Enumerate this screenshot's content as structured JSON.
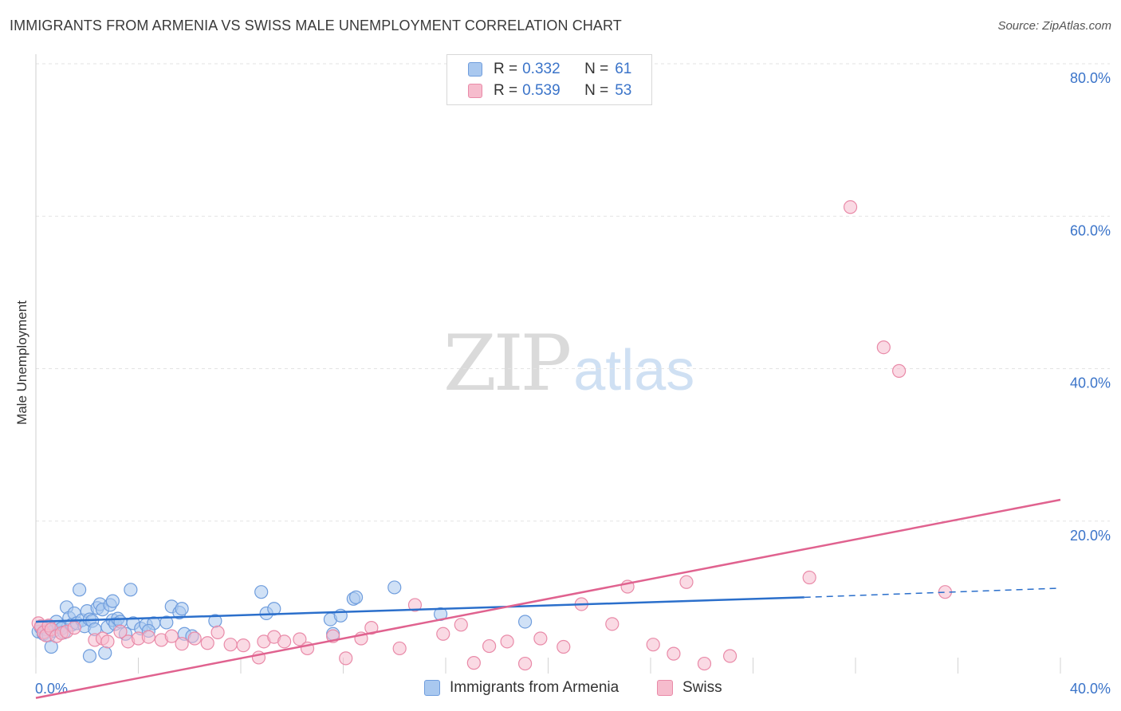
{
  "title": "IMMIGRANTS FROM ARMENIA VS SWISS MALE UNEMPLOYMENT CORRELATION CHART",
  "source": "Source: ZipAtlas.com",
  "watermark": {
    "zip": "ZIP",
    "atlas": "atlas"
  },
  "legend_top": [
    {
      "r_label": "R =",
      "r_value": "0.332",
      "n_label": "N =",
      "n_value": "61"
    },
    {
      "r_label": "R =",
      "r_value": "0.539",
      "n_label": "N =",
      "n_value": "53"
    }
  ],
  "legend_bottom": [
    "Immigrants from Armenia",
    "Swiss"
  ],
  "colors": {
    "blue_fill": "#a9c8ef",
    "blue_stroke": "#6f9ddd",
    "blue_line": "#2b6fcb",
    "pink_fill": "#f6bccd",
    "pink_stroke": "#e98aa8",
    "pink_line": "#e0628f",
    "grid": "#e3e3e3",
    "axis_text": "#3b74c9"
  },
  "chart_data": {
    "type": "scatter",
    "title": "IMMIGRANTS FROM ARMENIA VS SWISS MALE UNEMPLOYMENT CORRELATION CHART",
    "xlabel": "",
    "ylabel": "Male Unemployment",
    "xlim": [
      0,
      40
    ],
    "ylim": [
      0,
      80
    ],
    "x_tick_labels": [
      "0.0%",
      "40.0%"
    ],
    "y_ticks": [
      20,
      40,
      60,
      80
    ],
    "y_tick_labels": [
      "20.0%",
      "40.0%",
      "60.0%",
      "80.0%"
    ],
    "grid": true,
    "legend_position": "top-center",
    "series": [
      {
        "name": "Immigrants from Armenia",
        "r": 0.332,
        "n": 61,
        "trend": {
          "x0": 0,
          "y0": 6.8,
          "x1": 30.0,
          "y1": 10.0,
          "dashed_to_x": 40,
          "dashed_to_y": 11.2
        },
        "points": [
          [
            0.1,
            5.5
          ],
          [
            0.2,
            6.0
          ],
          [
            0.3,
            5.2
          ],
          [
            0.4,
            5.8
          ],
          [
            0.5,
            6.2
          ],
          [
            0.5,
            5.0
          ],
          [
            0.6,
            3.5
          ],
          [
            0.7,
            5.6
          ],
          [
            0.8,
            6.8
          ],
          [
            0.9,
            6.1
          ],
          [
            1.0,
            5.9
          ],
          [
            1.1,
            5.4
          ],
          [
            1.2,
            8.7
          ],
          [
            1.3,
            7.3
          ],
          [
            1.4,
            6.4
          ],
          [
            1.5,
            7.9
          ],
          [
            1.6,
            6.6
          ],
          [
            1.7,
            11.0
          ],
          [
            1.8,
            7.0
          ],
          [
            1.9,
            6.2
          ],
          [
            2.0,
            8.2
          ],
          [
            2.1,
            7.1
          ],
          [
            2.2,
            6.9
          ],
          [
            2.3,
            5.8
          ],
          [
            2.4,
            8.6
          ],
          [
            2.5,
            9.1
          ],
          [
            2.6,
            8.4
          ],
          [
            2.8,
            6.1
          ],
          [
            2.9,
            9.0
          ],
          [
            3.0,
            7.0
          ],
          [
            3.1,
            6.5
          ],
          [
            3.2,
            7.2
          ],
          [
            3.3,
            6.8
          ],
          [
            3.5,
            5.2
          ],
          [
            3.7,
            11.0
          ],
          [
            3.8,
            6.6
          ],
          [
            4.1,
            5.9
          ],
          [
            4.3,
            6.4
          ],
          [
            4.6,
            6.6
          ],
          [
            4.4,
            5.6
          ],
          [
            5.1,
            6.7
          ],
          [
            5.3,
            8.8
          ],
          [
            5.6,
            8.0
          ],
          [
            5.7,
            8.5
          ],
          [
            5.8,
            5.2
          ],
          [
            6.1,
            4.9
          ],
          [
            7.0,
            6.9
          ],
          [
            8.8,
            10.7
          ],
          [
            9.0,
            7.9
          ],
          [
            9.3,
            8.5
          ],
          [
            11.5,
            7.1
          ],
          [
            11.6,
            5.2
          ],
          [
            11.9,
            7.6
          ],
          [
            12.4,
            9.8
          ],
          [
            12.5,
            10.0
          ],
          [
            14.0,
            11.3
          ],
          [
            15.8,
            7.8
          ],
          [
            19.1,
            6.8
          ],
          [
            2.1,
            2.3
          ],
          [
            2.7,
            2.7
          ],
          [
            3.0,
            9.5
          ]
        ]
      },
      {
        "name": "Swiss",
        "r": 0.539,
        "n": 53,
        "trend": {
          "x0": 0,
          "y0": -3.2,
          "x1": 40,
          "y1": 22.8
        },
        "points": [
          [
            0.1,
            6.6
          ],
          [
            0.2,
            6.2
          ],
          [
            0.3,
            5.4
          ],
          [
            0.4,
            5.0
          ],
          [
            0.5,
            6.3
          ],
          [
            0.6,
            5.8
          ],
          [
            0.8,
            4.9
          ],
          [
            1.0,
            5.3
          ],
          [
            1.2,
            5.5
          ],
          [
            1.5,
            6.0
          ],
          [
            2.3,
            4.4
          ],
          [
            2.6,
            4.6
          ],
          [
            2.8,
            4.2
          ],
          [
            3.3,
            5.5
          ],
          [
            3.6,
            4.2
          ],
          [
            4.0,
            4.6
          ],
          [
            4.4,
            4.8
          ],
          [
            4.9,
            4.4
          ],
          [
            5.3,
            4.9
          ],
          [
            5.7,
            3.9
          ],
          [
            6.2,
            4.6
          ],
          [
            6.7,
            4.0
          ],
          [
            7.1,
            5.4
          ],
          [
            7.6,
            3.8
          ],
          [
            8.1,
            3.7
          ],
          [
            8.7,
            2.1
          ],
          [
            8.9,
            4.2
          ],
          [
            9.3,
            4.8
          ],
          [
            9.7,
            4.2
          ],
          [
            10.3,
            4.5
          ],
          [
            10.6,
            3.3
          ],
          [
            11.6,
            4.9
          ],
          [
            12.1,
            2.0
          ],
          [
            12.7,
            4.6
          ],
          [
            13.1,
            6.0
          ],
          [
            14.2,
            3.3
          ],
          [
            14.8,
            9.0
          ],
          [
            15.9,
            5.2
          ],
          [
            16.6,
            6.4
          ],
          [
            17.1,
            1.4
          ],
          [
            17.7,
            3.6
          ],
          [
            18.4,
            4.2
          ],
          [
            19.1,
            1.3
          ],
          [
            19.7,
            4.6
          ],
          [
            20.6,
            3.5
          ],
          [
            21.3,
            9.1
          ],
          [
            22.5,
            6.5
          ],
          [
            23.1,
            11.4
          ],
          [
            24.1,
            3.8
          ],
          [
            24.9,
            2.6
          ],
          [
            25.4,
            12.0
          ],
          [
            26.1,
            1.3
          ],
          [
            27.1,
            2.3
          ]
        ],
        "outliers": [
          [
            30.2,
            12.6
          ],
          [
            31.8,
            61.2
          ],
          [
            33.1,
            42.8
          ],
          [
            33.7,
            39.7
          ],
          [
            35.5,
            10.7
          ]
        ]
      }
    ]
  }
}
